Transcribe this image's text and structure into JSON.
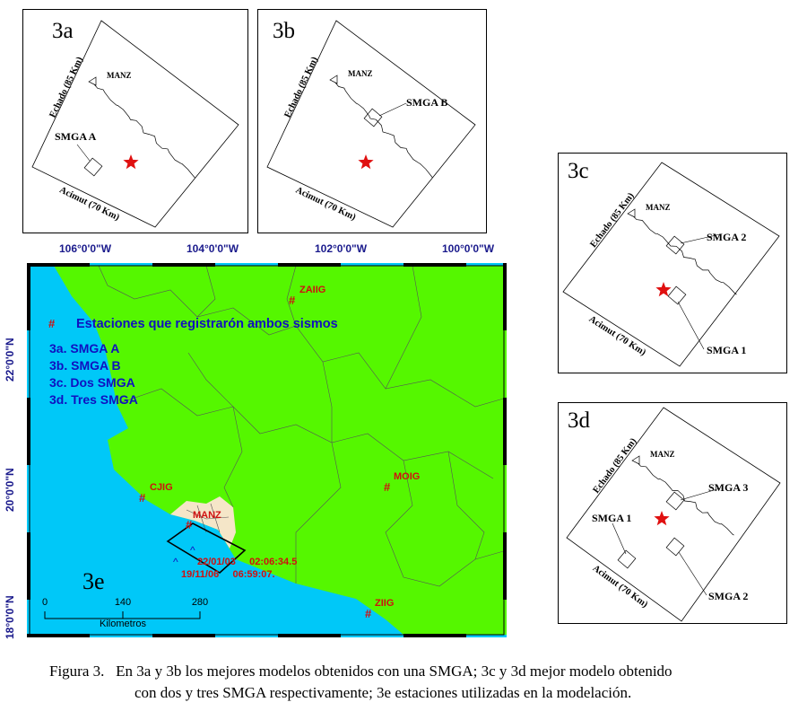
{
  "panels": {
    "a": {
      "label": "3a",
      "labels": {
        "manz": "MANZ",
        "echado": "Echado (85 Km)",
        "acimut": "Acimut (70 Km)",
        "smga": [
          "SMGA A"
        ]
      }
    },
    "b": {
      "label": "3b",
      "labels": {
        "manz": "MANZ",
        "echado": "Echado (85 Km)",
        "acimut": "Acimut (70 Km)",
        "smga": [
          "SMGA B"
        ]
      }
    },
    "c": {
      "label": "3c",
      "labels": {
        "manz": "MANZ",
        "echado": "Echado (85 Km)",
        "acimut": "Acimut (70 Km)",
        "smga": [
          "SMGA 2",
          "SMGA 1"
        ]
      }
    },
    "d": {
      "label": "3d",
      "labels": {
        "manz": "MANZ",
        "echado": "Echado (85 Km)",
        "acimut": "Acimut (70 Km)",
        "smga": [
          "SMGA 3",
          "SMGA 1",
          "SMGA 2"
        ]
      }
    }
  },
  "map": {
    "label": "3e",
    "lon_ticks": [
      "106°0'0\"W",
      "104°0'0\"W",
      "102°0'0\"W",
      "100°0'0\"W"
    ],
    "lat_ticks": [
      "22°0'0\"N",
      "20°0'0\"N",
      "18°0'0\"N"
    ],
    "legend_symbol": "#",
    "legend_text": "Estaciones que registrarón ambos sismos",
    "cases": [
      "3a. SMGA A",
      "3b. SMGA B",
      "3c. Dos SMGA",
      "3d. Tres SMGA"
    ],
    "stations": [
      "ZAIIG",
      "MOIG",
      "CJIG",
      "MANZ",
      "ZIIG"
    ],
    "events": [
      "22/01/03     02:06:34.5",
      "19/11/06     06:59:07."
    ],
    "scale": {
      "ticks": [
        "0",
        "140",
        "280"
      ],
      "unit": "Kilometros"
    },
    "colors": {
      "ocean": "#00c8f8",
      "land": "#55f700",
      "colima": "#f5e6c8",
      "station": "#d01010",
      "legend": "#1010c0"
    }
  },
  "caption": {
    "line1": "Figura 3.   En 3a y 3b los mejores modelos obtenidos con una SMGA; 3c y 3d mejor modelo obtenido",
    "line2": "con dos y tres SMGA respectivamente; 3e estaciones utilizadas en la modelación."
  }
}
